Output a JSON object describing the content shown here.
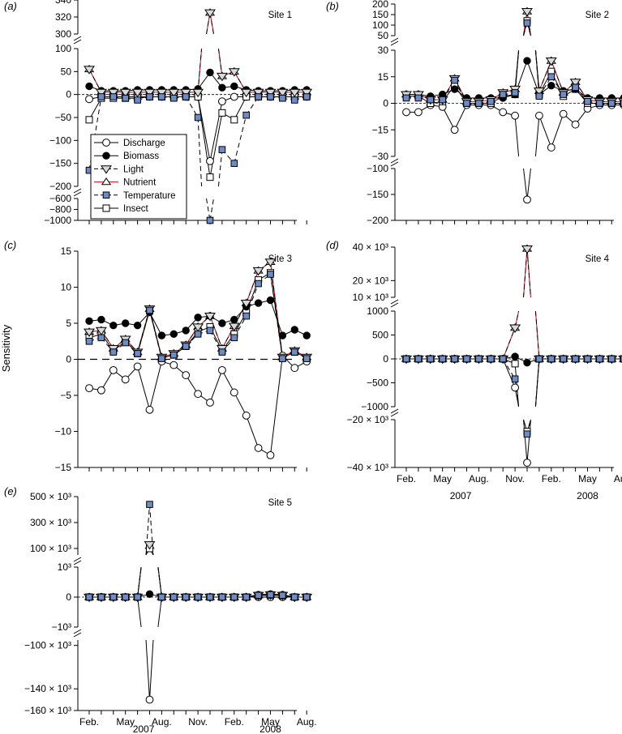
{
  "figure": {
    "ylabel": "Sensitivity",
    "x_months": [
      "Feb.",
      "May",
      "Aug.",
      "Nov.",
      "Feb.",
      "May",
      "Aug."
    ],
    "x_years": [
      "2007",
      "2008"
    ]
  },
  "legend": {
    "items": [
      {
        "name": "Discharge",
        "marker": "circle-open",
        "line": "solid",
        "color": "#000000"
      },
      {
        "name": "Biomass",
        "marker": "circle-filled",
        "line": "solid",
        "color": "#000000"
      },
      {
        "name": "Light",
        "marker": "triangle-down",
        "line": "dashed",
        "color": "#000000"
      },
      {
        "name": "Nutrient",
        "marker": "triangle-up",
        "line": "solid",
        "color": "#d0021b"
      },
      {
        "name": "Temperature",
        "marker": "square-filled",
        "line": "dashed",
        "color": "#6f8bc6"
      },
      {
        "name": "Insect",
        "marker": "square-open",
        "line": "solid",
        "color": "#000000"
      }
    ]
  },
  "colors": {
    "light_fill": "#d9d9d9",
    "temperature_fill": "#6f8bc6",
    "nutrient_line": "#d0021b"
  },
  "chart_data": [
    {
      "id": "a",
      "panel_label": "(a)",
      "site": "Site 1",
      "type": "line",
      "x": [
        1,
        2,
        3,
        4,
        5,
        6,
        7,
        8,
        9,
        10,
        11,
        12,
        13,
        14,
        15,
        16,
        17,
        18,
        19
      ],
      "y_ticks": [
        "340",
        "320",
        "300",
        "100",
        "50",
        "0",
        "−50",
        "−100",
        "−150",
        "−200",
        "−600",
        "−800",
        "−1000"
      ],
      "series": {
        "Discharge": [
          -10,
          -5,
          -5,
          -5,
          -5,
          -5,
          -5,
          -5,
          -5,
          -5,
          -145,
          -15,
          -5,
          -5,
          -5,
          -5,
          -5,
          -5,
          -5
        ],
        "Biomass": [
          18,
          8,
          8,
          8,
          10,
          10,
          10,
          10,
          10,
          12,
          48,
          15,
          18,
          10,
          8,
          8,
          8,
          10,
          10
        ],
        "Light": [
          55,
          5,
          5,
          5,
          5,
          5,
          5,
          5,
          5,
          5,
          325,
          40,
          50,
          5,
          5,
          5,
          5,
          5,
          5
        ],
        "Nutrient": [
          55,
          5,
          5,
          5,
          5,
          5,
          5,
          5,
          5,
          5,
          325,
          40,
          50,
          5,
          5,
          5,
          5,
          5,
          5
        ],
        "Temperature": [
          -165,
          -5,
          -5,
          -8,
          -12,
          -5,
          -5,
          -8,
          -5,
          -50,
          -1000,
          -120,
          -150,
          -45,
          -5,
          -5,
          -8,
          -12,
          -5
        ],
        "Insect": [
          -55,
          -8,
          -8,
          -8,
          -8,
          -5,
          -5,
          -5,
          -5,
          -5,
          -180,
          -40,
          -55,
          -5,
          -5,
          -5,
          -5,
          -5,
          -5
        ]
      }
    },
    {
      "id": "b",
      "panel_label": "(b)",
      "site": "Site 2",
      "type": "line",
      "x": [
        1,
        2,
        3,
        4,
        5,
        6,
        7,
        8,
        9,
        10,
        11,
        12,
        13,
        14,
        15,
        16,
        17,
        18,
        19
      ],
      "y_ticks": [
        "200",
        "150",
        "100",
        "50",
        "30",
        "15",
        "0",
        "−15",
        "−30",
        "−100",
        "−150",
        "−200"
      ],
      "series": {
        "Discharge": [
          -5,
          -5,
          -1,
          -2,
          -15,
          -1,
          -1,
          -1,
          -5,
          -7,
          -160,
          -7,
          -25,
          -6,
          -12,
          -3,
          -1,
          -1,
          -1
        ],
        "Biomass": [
          5,
          5,
          4,
          5,
          8,
          3,
          3,
          3,
          3,
          5,
          24,
          5,
          10,
          7,
          8,
          3,
          3,
          3,
          3
        ],
        "Light": [
          5,
          5,
          2,
          2,
          14,
          1,
          1,
          2,
          6,
          8,
          165,
          7,
          24,
          6,
          12,
          2,
          1,
          1,
          1
        ],
        "Nutrient": [
          5,
          5,
          2,
          2,
          14,
          1,
          1,
          2,
          6,
          8,
          165,
          7,
          24,
          6,
          12,
          2,
          1,
          1,
          1
        ],
        "Temperature": [
          3,
          3,
          2,
          2,
          13,
          0,
          0,
          1,
          5,
          6,
          110,
          4,
          15,
          5,
          9,
          1,
          0,
          0,
          0
        ],
        "Insect": [
          4,
          4,
          0,
          1,
          10,
          0,
          0,
          0,
          4,
          5,
          120,
          5,
          18,
          4,
          8,
          0,
          0,
          0,
          0
        ]
      }
    },
    {
      "id": "c",
      "panel_label": "(c)",
      "site": "Site 3",
      "type": "line",
      "x": [
        1,
        2,
        3,
        4,
        5,
        6,
        7,
        8,
        9,
        10,
        11,
        12,
        13,
        14,
        15,
        16,
        17,
        18,
        19
      ],
      "y_ticks": [
        "15",
        "10",
        "5",
        "0",
        "−5",
        "−10",
        "−15"
      ],
      "series": {
        "Discharge": [
          -4,
          -4.3,
          -1.5,
          -2.8,
          -1,
          -7,
          -0.3,
          -0.8,
          -2.2,
          -4.8,
          -6,
          -1.5,
          -4.6,
          -7.8,
          -12.3,
          -13.3,
          0.5,
          -1.2,
          -0.3
        ],
        "Biomass": [
          5.3,
          5.5,
          4.7,
          5,
          4.7,
          6.5,
          3.3,
          3.5,
          4,
          5.8,
          6,
          5,
          5.5,
          7.3,
          7.8,
          8.2,
          3.3,
          4.1,
          3.3
        ],
        "Light": [
          3.8,
          4,
          1.5,
          2.8,
          1,
          7,
          0.3,
          0.8,
          2,
          4.5,
          6,
          1.5,
          4.6,
          7.8,
          12.3,
          13.5,
          0.3,
          1.2,
          0.3
        ],
        "Nutrient": [
          3.8,
          4,
          1.5,
          2.8,
          1,
          7,
          0.3,
          0.8,
          2,
          4.5,
          6,
          1.5,
          4.6,
          7.8,
          12.3,
          13.5,
          0.3,
          1.2,
          0.3
        ],
        "Temperature": [
          2.5,
          3,
          1,
          2.3,
          0.8,
          6.8,
          0.1,
          0.6,
          1.8,
          3.5,
          4,
          1,
          3,
          6,
          10.5,
          11.8,
          0.1,
          1,
          0.1
        ],
        "Insect": [
          3,
          3.5,
          1.2,
          2.5,
          0.8,
          6.8,
          0.2,
          0.6,
          1.8,
          3.8,
          4.5,
          1.2,
          3.5,
          6.5,
          11,
          12,
          0.2,
          1,
          0.2
        ]
      }
    },
    {
      "id": "d",
      "panel_label": "(d)",
      "site": "Site 4",
      "type": "line",
      "x": [
        1,
        2,
        3,
        4,
        5,
        6,
        7,
        8,
        9,
        10,
        11,
        12,
        13,
        14,
        15,
        16,
        17,
        18,
        19
      ],
      "x_tick_labels": [
        "Feb.",
        "May",
        "Aug.",
        "Nov.",
        "Feb.",
        "May",
        "Aug."
      ],
      "x_year_labels": [
        "2007",
        "2008"
      ],
      "y_ticks": [
        "40 × 10³",
        "20 × 10³",
        "10 × 10³",
        "1000",
        "500",
        "0",
        "−500",
        "−1000",
        "−20 × 10³",
        "−40 × 10³"
      ],
      "series": {
        "Discharge": [
          0,
          0,
          0,
          0,
          0,
          0,
          0,
          0,
          0,
          -600,
          -38000,
          0,
          0,
          0,
          0,
          0,
          0,
          0,
          0
        ],
        "Biomass": [
          0,
          0,
          0,
          0,
          0,
          0,
          0,
          0,
          0,
          50,
          -80,
          0,
          0,
          0,
          0,
          0,
          0,
          0,
          0
        ],
        "Light": [
          0,
          0,
          0,
          0,
          0,
          0,
          0,
          0,
          0,
          650,
          39000,
          0,
          0,
          0,
          0,
          0,
          0,
          0,
          0
        ],
        "Nutrient": [
          0,
          0,
          0,
          0,
          0,
          0,
          0,
          0,
          0,
          650,
          39000,
          0,
          0,
          0,
          0,
          0,
          0,
          0,
          0
        ],
        "Temperature": [
          0,
          0,
          0,
          0,
          0,
          0,
          0,
          0,
          0,
          -420,
          -26000,
          0,
          0,
          0,
          0,
          0,
          0,
          0,
          0
        ],
        "Insect": [
          0,
          0,
          0,
          0,
          0,
          0,
          0,
          0,
          0,
          -100,
          -25000,
          0,
          0,
          0,
          0,
          0,
          0,
          0,
          0
        ]
      }
    },
    {
      "id": "e",
      "panel_label": "(e)",
      "site": "Site 5",
      "type": "line",
      "x": [
        1,
        2,
        3,
        4,
        5,
        6,
        7,
        8,
        9,
        10,
        11,
        12,
        13,
        14,
        15,
        16,
        17,
        18,
        19
      ],
      "x_tick_labels": [
        "Feb.",
        "May",
        "Aug.",
        "Nov.",
        "Feb.",
        "May",
        "Aug."
      ],
      "x_year_labels": [
        "2007",
        "2008"
      ],
      "y_ticks": [
        "500 × 10³",
        "300 × 10³",
        "100 × 10³",
        "10³",
        "0",
        "−10³",
        "−100 × 10³",
        "−140 × 10³",
        "−160 × 10³"
      ],
      "series": {
        "Discharge": [
          0,
          0,
          0,
          0,
          0,
          -150000,
          0,
          0,
          0,
          0,
          0,
          0,
          0,
          0,
          0,
          0,
          0,
          0,
          0
        ],
        "Biomass": [
          0,
          0,
          0,
          0,
          0,
          100,
          0,
          0,
          0,
          0,
          0,
          0,
          0,
          0,
          80,
          100,
          80,
          0,
          0
        ],
        "Light": [
          0,
          0,
          0,
          0,
          0,
          130000,
          0,
          0,
          0,
          0,
          0,
          0,
          0,
          0,
          60,
          80,
          60,
          0,
          0
        ],
        "Nutrient": [
          0,
          0,
          0,
          0,
          0,
          120000,
          0,
          0,
          0,
          0,
          0,
          0,
          0,
          0,
          60,
          80,
          60,
          0,
          0
        ],
        "Temperature": [
          0,
          0,
          0,
          0,
          0,
          440000,
          0,
          0,
          0,
          0,
          0,
          0,
          0,
          0,
          60,
          80,
          60,
          0,
          0
        ],
        "Insect": [
          0,
          0,
          0,
          0,
          0,
          100000,
          0,
          0,
          0,
          0,
          0,
          0,
          0,
          0,
          50,
          60,
          50,
          0,
          0
        ]
      }
    }
  ]
}
